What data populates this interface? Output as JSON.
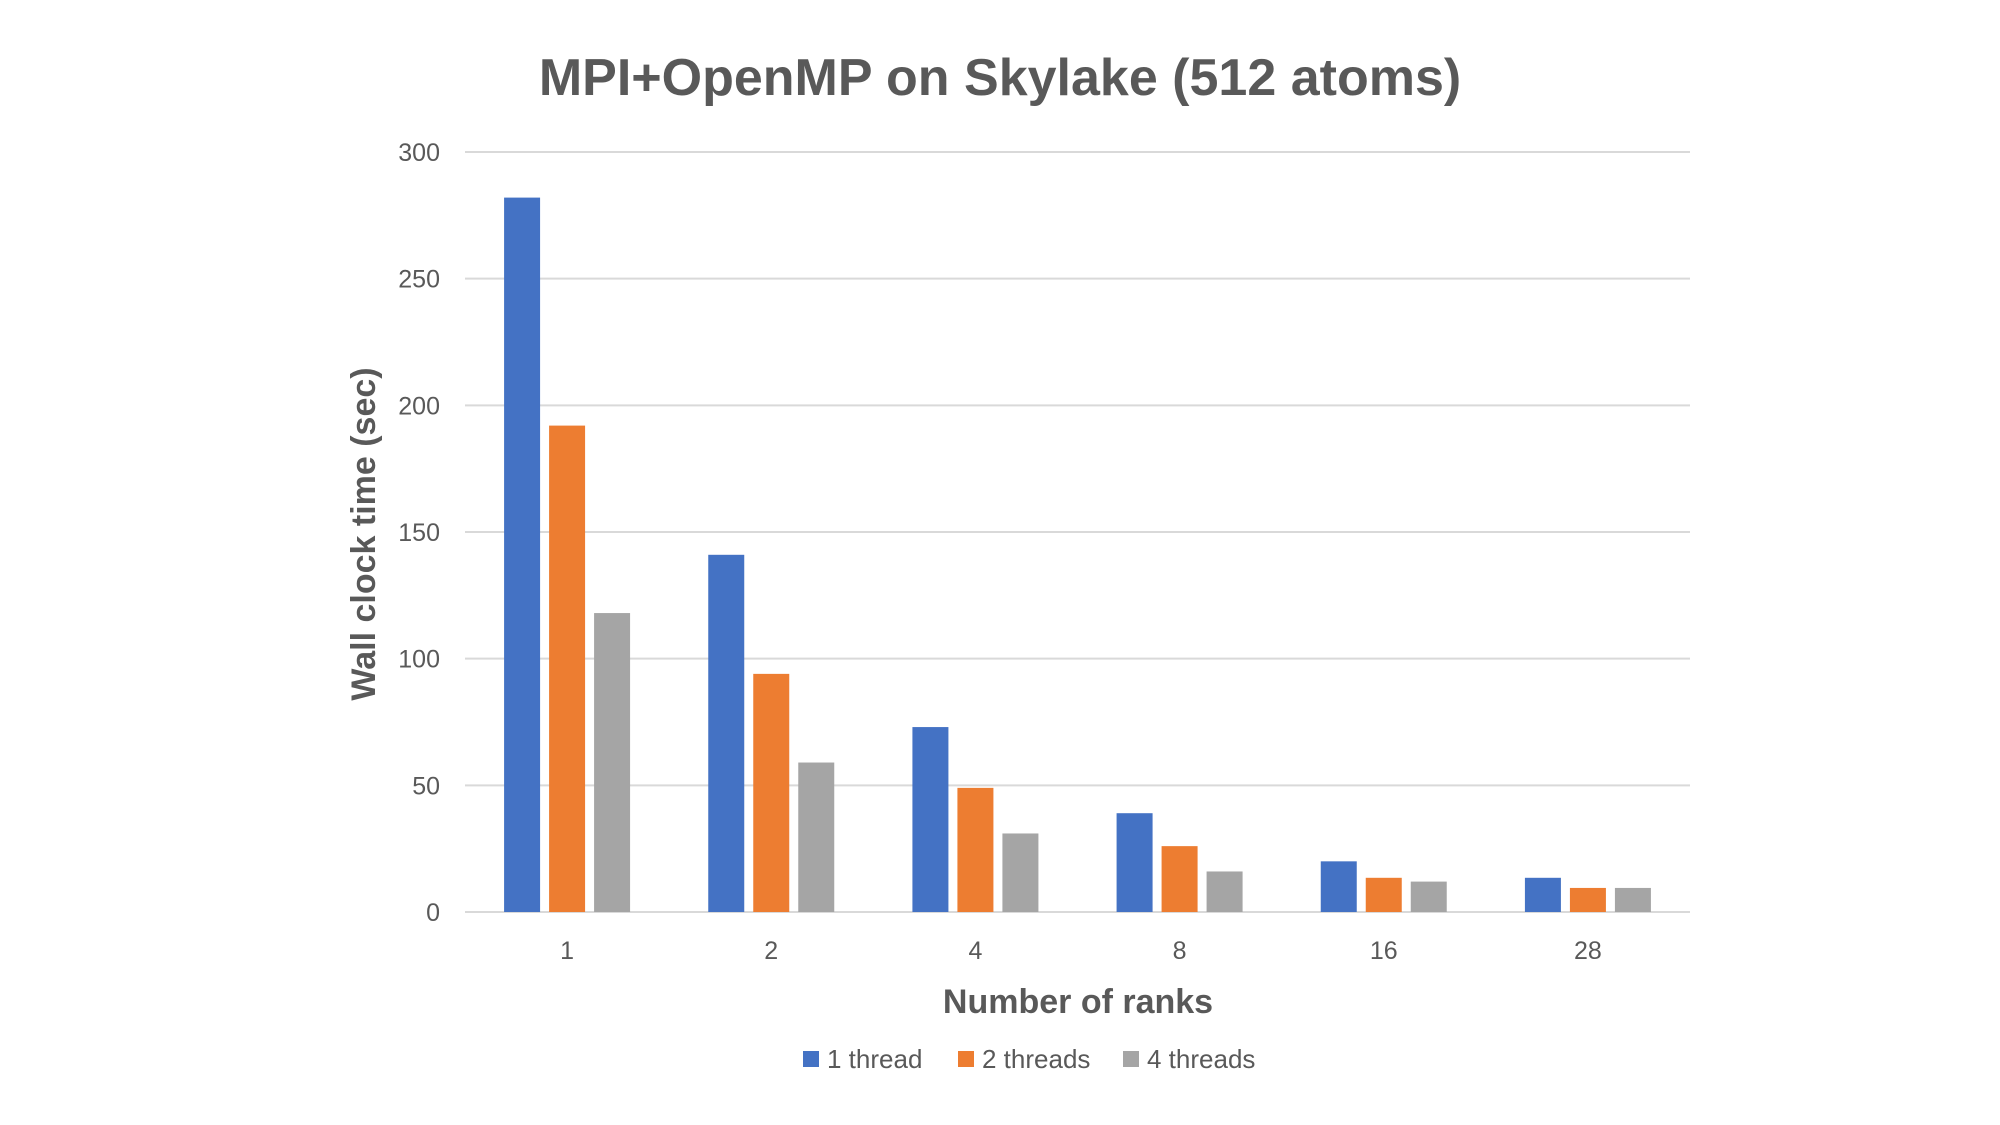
{
  "chart_data": {
    "type": "bar",
    "title": "MPI+OpenMP on Skylake (512 atoms)",
    "xlabel": "Number of ranks",
    "ylabel": "Wall clock time (sec)",
    "categories": [
      "1",
      "2",
      "4",
      "8",
      "16",
      "28"
    ],
    "ylim": [
      0,
      300
    ],
    "yticks": [
      0,
      50,
      100,
      150,
      200,
      250,
      300
    ],
    "grid": true,
    "legend_position": "bottom",
    "series": [
      {
        "name": "1 thread",
        "color": "#4472C4",
        "values": [
          282,
          141,
          73,
          39,
          20,
          13.5
        ]
      },
      {
        "name": "2 threads",
        "color": "#ED7D31",
        "values": [
          192,
          94,
          49,
          26,
          13.5,
          9.5
        ]
      },
      {
        "name": "4 threads",
        "color": "#A5A5A5",
        "values": [
          118,
          59,
          31,
          16,
          12,
          9.5
        ]
      }
    ]
  }
}
